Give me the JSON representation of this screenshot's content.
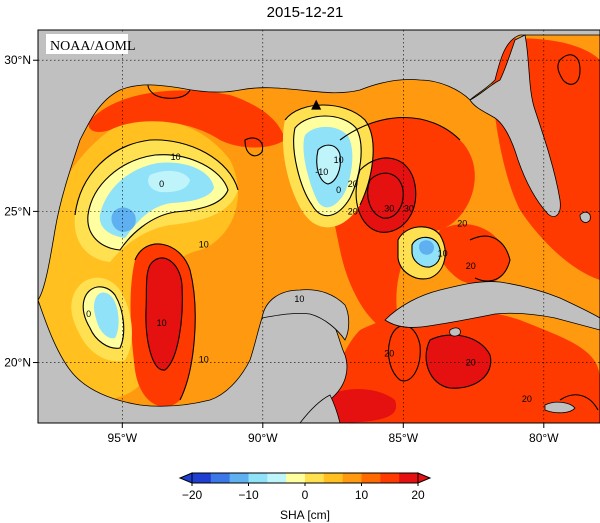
{
  "title": "2015-12-21",
  "credit": "NOAA/AOML",
  "map": {
    "lon_range": [
      -98,
      -78
    ],
    "lat_range": [
      18,
      31
    ],
    "lon_ticks": [
      {
        "value": -95,
        "label": "95°W"
      },
      {
        "value": -90,
        "label": "90°W"
      },
      {
        "value": -85,
        "label": "85°W"
      },
      {
        "value": -80,
        "label": "80°W"
      }
    ],
    "lat_ticks": [
      {
        "value": 20,
        "label": "20°N"
      },
      {
        "value": 25,
        "label": "25°N"
      },
      {
        "value": 30,
        "label": "30°N"
      }
    ],
    "land_color": "#c0c0c0",
    "grid": true,
    "marker": {
      "lon": -88.1,
      "lat": 28.5,
      "shape": "triangle"
    }
  },
  "colorbar": {
    "label": "SHA [cm]",
    "ticks": [
      "−20",
      "−10",
      "0",
      "10",
      "20"
    ],
    "colors": [
      "#1f3fd0",
      "#3a78e8",
      "#5fb0f0",
      "#8fe2f8",
      "#bff4fa",
      "#ffffa0",
      "#ffe050",
      "#ffc020",
      "#ff9a10",
      "#ff6a00",
      "#ff3a00",
      "#e51010"
    ]
  },
  "contour_labels": [
    {
      "text": "10",
      "lon": -93.1,
      "lat": 26.8
    },
    {
      "text": "0",
      "lon": -93.6,
      "lat": 25.9
    },
    {
      "text": "10",
      "lon": -92.1,
      "lat": 23.9
    },
    {
      "text": "10",
      "lon": -93.6,
      "lat": 21.3
    },
    {
      "text": "0",
      "lon": -96.2,
      "lat": 21.6
    },
    {
      "text": "10",
      "lon": -92.1,
      "lat": 20.1
    },
    {
      "text": "10",
      "lon": -87.3,
      "lat": 26.7
    },
    {
      "text": "-10",
      "lon": -87.9,
      "lat": 26.3
    },
    {
      "text": "0",
      "lon": -87.3,
      "lat": 25.7
    },
    {
      "text": "20",
      "lon": -86.8,
      "lat": 25.0
    },
    {
      "text": "20",
      "lon": -86.8,
      "lat": 25.9
    },
    {
      "text": "30",
      "lon": -85.5,
      "lat": 25.1
    },
    {
      "text": "30",
      "lon": -84.8,
      "lat": 25.1
    },
    {
      "text": "10",
      "lon": -83.6,
      "lat": 23.6
    },
    {
      "text": "20",
      "lon": -82.9,
      "lat": 24.6
    },
    {
      "text": "20",
      "lon": -82.6,
      "lat": 23.2
    },
    {
      "text": "10",
      "lon": -88.7,
      "lat": 22.1
    },
    {
      "text": "20",
      "lon": -85.5,
      "lat": 20.3
    },
    {
      "text": "20",
      "lon": -82.6,
      "lat": 20.0
    },
    {
      "text": "20",
      "lon": -80.6,
      "lat": 18.8
    }
  ]
}
